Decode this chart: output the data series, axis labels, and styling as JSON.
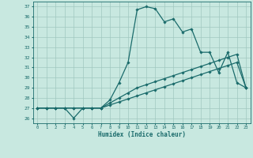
{
  "xlabel": "Humidex (Indice chaleur)",
  "bg_color": "#c8e8e0",
  "grid_color": "#a0c8c0",
  "line_color": "#1a6b6b",
  "xlim": [
    -0.5,
    23.5
  ],
  "ylim": [
    25.5,
    37.5
  ],
  "yticks": [
    26,
    27,
    28,
    29,
    30,
    31,
    32,
    33,
    34,
    35,
    36,
    37
  ],
  "xticks": [
    0,
    1,
    2,
    3,
    4,
    5,
    6,
    7,
    8,
    9,
    10,
    11,
    12,
    13,
    14,
    15,
    16,
    17,
    18,
    19,
    20,
    21,
    22,
    23
  ],
  "series": [
    {
      "x": [
        0,
        1,
        2,
        3,
        4,
        5,
        6,
        7,
        8,
        9,
        10,
        11,
        12,
        13,
        14,
        15,
        16,
        17,
        18,
        19,
        20,
        21,
        22,
        23
      ],
      "y": [
        27,
        27,
        27,
        27,
        26,
        27,
        27,
        27,
        27.8,
        29.5,
        31.5,
        36.7,
        37.0,
        36.8,
        35.5,
        35.8,
        34.5,
        34.8,
        32.5,
        32.5,
        30.5,
        32.5,
        29.5,
        29.0
      ]
    },
    {
      "x": [
        0,
        1,
        2,
        3,
        4,
        5,
        6,
        7,
        8,
        9,
        10,
        11,
        12,
        13,
        14,
        15,
        16,
        17,
        18,
        19,
        20,
        21,
        22,
        23
      ],
      "y": [
        27,
        27,
        27,
        27,
        27,
        27,
        27,
        27,
        27.5,
        28.0,
        28.5,
        29.0,
        29.3,
        29.6,
        29.9,
        30.2,
        30.5,
        30.8,
        31.1,
        31.4,
        31.7,
        32.0,
        32.3,
        29.0
      ]
    },
    {
      "x": [
        0,
        1,
        2,
        3,
        4,
        5,
        6,
        7,
        8,
        9,
        10,
        11,
        12,
        13,
        14,
        15,
        16,
        17,
        18,
        19,
        20,
        21,
        22,
        23
      ],
      "y": [
        27,
        27,
        27,
        27,
        27,
        27,
        27,
        27,
        27.3,
        27.6,
        27.9,
        28.2,
        28.5,
        28.8,
        29.1,
        29.4,
        29.7,
        30.0,
        30.3,
        30.6,
        30.9,
        31.2,
        31.5,
        29.0
      ]
    }
  ]
}
